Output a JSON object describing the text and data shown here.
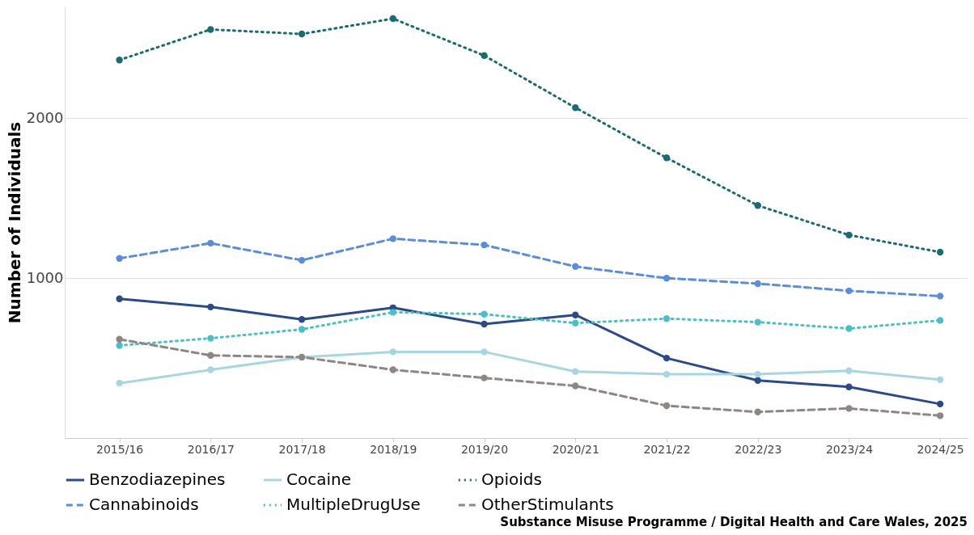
{
  "chart_data": {
    "type": "line",
    "ylabel": "Number of Individuals",
    "categories": [
      "2015/16",
      "2016/17",
      "2017/18",
      "2018/19",
      "2019/20",
      "2020/21",
      "2021/22",
      "2022/23",
      "2023/24",
      "2024/25"
    ],
    "series": [
      {
        "name": "Benzodiazepines",
        "color": "#2b4a8a",
        "line_style": "solid",
        "values": [
          871,
          820,
          742,
          815,
          713,
          770,
          500,
          360,
          320,
          213
        ]
      },
      {
        "name": "Cocaine",
        "color": "#a8d5e2",
        "line_style": "solid",
        "values": [
          343,
          427,
          506,
          539,
          539,
          416,
          399,
          399,
          421,
          365
        ]
      },
      {
        "name": "Opioids",
        "color": "#1a6b72",
        "line_style": "dotted",
        "values": [
          2365,
          2556,
          2528,
          2624,
          2393,
          2067,
          1753,
          1455,
          1270,
          1163
        ]
      },
      {
        "name": "Cannabinoids",
        "color": "#5b8dd9",
        "line_style": "dashed",
        "values": [
          1124,
          1219,
          1112,
          1247,
          1208,
          1073,
          1000,
          966,
          921,
          888
        ]
      },
      {
        "name": "MultipleDrugUse",
        "color": "#4bbfc9",
        "line_style": "dotted",
        "values": [
          579,
          624,
          680,
          787,
          775,
          719,
          747,
          725,
          685,
          736
        ]
      },
      {
        "name": "OtherStimulants",
        "color": "#8f8584",
        "line_style": "dashed",
        "values": [
          618,
          517,
          506,
          427,
          376,
          326,
          202,
          163,
          185,
          140
        ]
      }
    ],
    "ylim": [
      0,
      2700
    ],
    "yticks": [
      {
        "value": 1000,
        "label": "1000"
      },
      {
        "value": 2000,
        "label": "2000"
      }
    ],
    "grid": "y",
    "legend": "bottom",
    "marker": "circle",
    "annotations": [
      "Substance Misuse Programme / Digital Health and Care Wales, 2025"
    ]
  }
}
